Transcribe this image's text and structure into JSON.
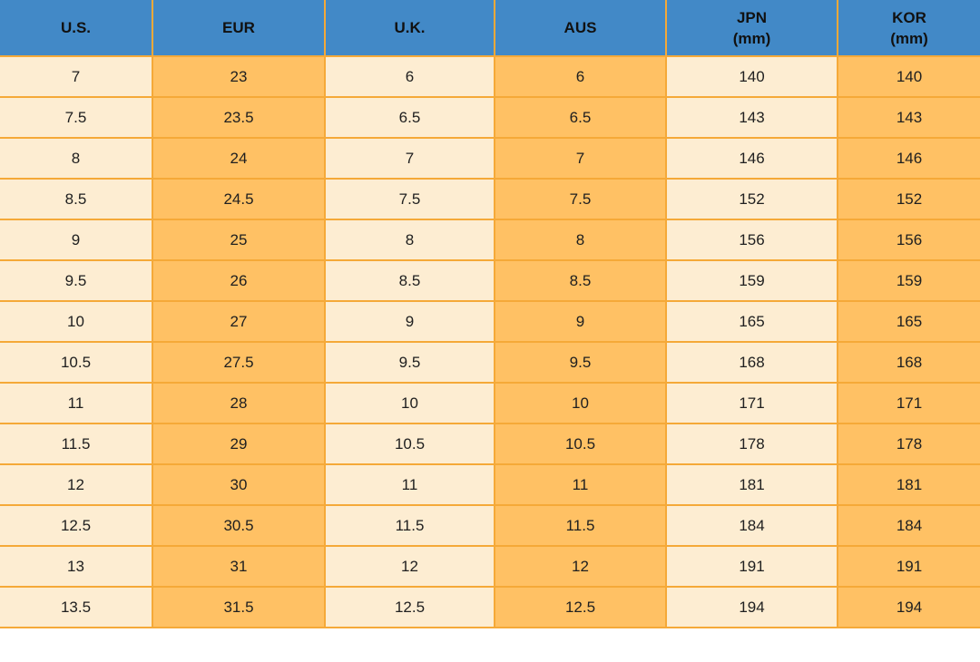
{
  "chart_data": {
    "type": "table",
    "columns": [
      {
        "label": "U.S."
      },
      {
        "label": "EUR"
      },
      {
        "label": "U.K."
      },
      {
        "label": "AUS"
      },
      {
        "label": "JPN",
        "sublabel": "(mm)"
      },
      {
        "label": "KOR",
        "sublabel": "(mm)"
      }
    ],
    "rows": [
      [
        "7",
        "23",
        "6",
        "6",
        "140",
        "140"
      ],
      [
        "7.5",
        "23.5",
        "6.5",
        "6.5",
        "143",
        "143"
      ],
      [
        "8",
        "24",
        "7",
        "7",
        "146",
        "146"
      ],
      [
        "8.5",
        "24.5",
        "7.5",
        "7.5",
        "152",
        "152"
      ],
      [
        "9",
        "25",
        "8",
        "8",
        "156",
        "156"
      ],
      [
        "9.5",
        "26",
        "8.5",
        "8.5",
        "159",
        "159"
      ],
      [
        "10",
        "27",
        "9",
        "9",
        "165",
        "165"
      ],
      [
        "10.5",
        "27.5",
        "9.5",
        "9.5",
        "168",
        "168"
      ],
      [
        "11",
        "28",
        "10",
        "10",
        "171",
        "171"
      ],
      [
        "11.5",
        "29",
        "10.5",
        "10.5",
        "178",
        "178"
      ],
      [
        "12",
        "30",
        "11",
        "11",
        "181",
        "181"
      ],
      [
        "12.5",
        "30.5",
        "11.5",
        "11.5",
        "184",
        "184"
      ],
      [
        "13",
        "31",
        "12",
        "12",
        "191",
        "191"
      ],
      [
        "13.5",
        "31.5",
        "12.5",
        "12.5",
        "194",
        "194"
      ]
    ]
  },
  "colors": {
    "header_bg": "#4289C7",
    "header_text": "#111111",
    "row_light": "#FDEDD2",
    "row_dark": "#FFC164",
    "border": "#F5A938",
    "cell_text": "#202020",
    "page_bg": "#FFFFFF"
  }
}
